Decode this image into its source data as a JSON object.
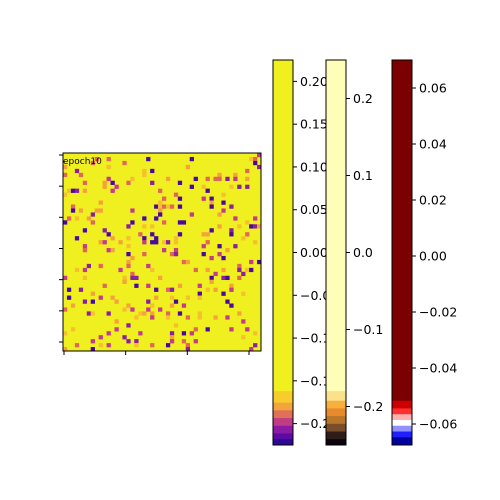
{
  "chart_data": {
    "type": "heatmap",
    "annotation": "epoch10",
    "grid": {
      "rows": 50,
      "cols": 50,
      "dominant_color": "#f0f020",
      "pattern": "mostly uniform yellow with scattered purple, magenta and orange cells"
    },
    "x_tick_count": 4,
    "y_tick_count": 7,
    "colorbars": [
      {
        "name": "",
        "colormap": "plasma-style, mostly yellow with purple/orange bands at the bottom",
        "range": [
          -0.225,
          0.225
        ],
        "ticks": [
          "0.20",
          "0.15",
          "0.10",
          "0.05",
          "0.00",
          "−0.05",
          "−0.10",
          "−0.15",
          "−0.20"
        ],
        "tick_values": [
          0.2,
          0.15,
          0.1,
          0.05,
          0.0,
          -0.05,
          -0.1,
          -0.15,
          -0.2
        ]
      },
      {
        "name": "",
        "colormap": "light yellow with orange/black bands at the bottom",
        "range": [
          -0.25,
          0.25
        ],
        "ticks": [
          "0.2",
          "0.1",
          "0.0",
          "−0.1",
          "−0.2"
        ],
        "tick_values": [
          0.2,
          0.1,
          0.0,
          -0.1,
          -0.2
        ]
      },
      {
        "name": "",
        "colormap": "dark red with red/white/blue bands at the bottom",
        "range": [
          -0.0675,
          0.07
        ],
        "ticks": [
          "0.06",
          "0.04",
          "0.02",
          "0.00",
          "−0.02",
          "−0.04",
          "−0.06"
        ],
        "tick_values": [
          0.06,
          0.04,
          0.02,
          0.0,
          -0.02,
          -0.04,
          -0.06
        ]
      }
    ]
  }
}
